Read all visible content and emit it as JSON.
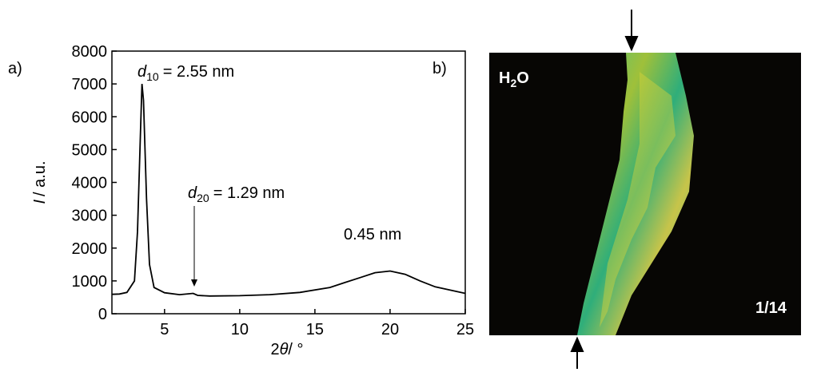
{
  "panels": {
    "a": "a)",
    "b": "b)"
  },
  "chart_data": {
    "type": "line",
    "x_label": {
      "prefix": "2",
      "symbol": "θ",
      "text": "/ °"
    },
    "y_label": {
      "symbol": "I",
      "text": "/ a.u."
    },
    "x": [
      1.5,
      2,
      2.5,
      3,
      3.2,
      3.4,
      3.5,
      3.6,
      3.8,
      4,
      4.3,
      5,
      6,
      6.9,
      7.2,
      8,
      10,
      12,
      14,
      16,
      17,
      18,
      19,
      20,
      21,
      22,
      23,
      24,
      25
    ],
    "values": [
      590,
      600,
      650,
      1000,
      2500,
      5500,
      7000,
      6500,
      3500,
      1500,
      800,
      640,
      580,
      620,
      560,
      540,
      550,
      580,
      650,
      800,
      950,
      1100,
      1250,
      1300,
      1200,
      1000,
      820,
      720,
      620
    ],
    "color": "#000000",
    "xlim": [
      1.5,
      25
    ],
    "ylim": [
      0,
      8000
    ],
    "xticks": [
      5,
      10,
      15,
      20,
      25
    ],
    "yticks": [
      0,
      1000,
      2000,
      3000,
      4000,
      5000,
      6000,
      7000,
      8000
    ],
    "annotations": [
      {
        "symbol": "d",
        "subscript": "10",
        "text": "= 2.55 nm"
      },
      {
        "symbol": "d",
        "subscript": "20",
        "text": "= 1.29 nm"
      },
      {
        "text": "0.45 nm"
      }
    ]
  },
  "image": {
    "label": {
      "main": "H",
      "subscript": "2",
      "suffix": "O"
    },
    "scale": "1/14"
  }
}
